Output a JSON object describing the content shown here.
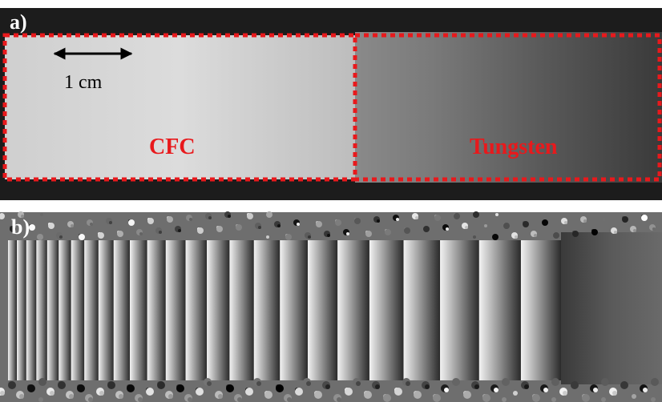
{
  "panels": [
    {
      "label": "a)",
      "annotations": {
        "scale": "1 cm",
        "left_region": "CFC",
        "right_region": "Tungsten"
      }
    },
    {
      "label": "b)"
    }
  ]
}
